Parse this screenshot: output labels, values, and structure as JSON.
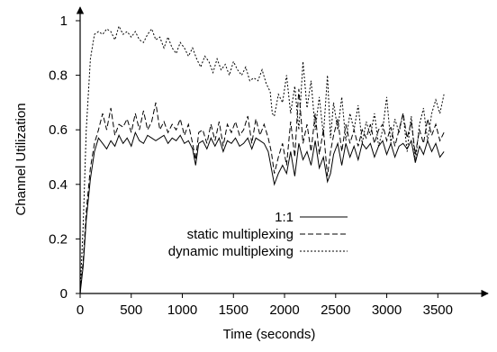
{
  "chart_data": {
    "type": "line",
    "title": "",
    "xlabel": "Time (seconds)",
    "ylabel": "Channel Utilization",
    "xlim": [
      0,
      3700
    ],
    "ylim": [
      0,
      1.05
    ],
    "xticks": [
      0,
      500,
      1000,
      1500,
      2000,
      2500,
      3000,
      3500
    ],
    "yticks": [
      0,
      0.2,
      0.4,
      0.6,
      0.8,
      1
    ],
    "x_tick_labels": [
      "0",
      "500",
      "1000",
      "1500",
      "2000",
      "2500",
      "3000",
      "3500"
    ],
    "y_tick_labels": [
      "0",
      "0.2",
      "0.4",
      "0.6",
      "0.8",
      "1"
    ],
    "grid": false,
    "legend_position": "center",
    "series": [
      {
        "name": "1:1",
        "style": "solid",
        "color": "#000000",
        "points": [
          [
            0,
            0
          ],
          [
            30,
            0.1
          ],
          [
            60,
            0.27
          ],
          [
            100,
            0.42
          ],
          [
            140,
            0.52
          ],
          [
            180,
            0.57
          ],
          [
            220,
            0.55
          ],
          [
            260,
            0.53
          ],
          [
            300,
            0.56
          ],
          [
            340,
            0.54
          ],
          [
            380,
            0.58
          ],
          [
            420,
            0.55
          ],
          [
            460,
            0.57
          ],
          [
            500,
            0.54
          ],
          [
            540,
            0.59
          ],
          [
            580,
            0.56
          ],
          [
            620,
            0.55
          ],
          [
            660,
            0.58
          ],
          [
            700,
            0.57
          ],
          [
            740,
            0.56
          ],
          [
            780,
            0.57
          ],
          [
            820,
            0.58
          ],
          [
            860,
            0.55
          ],
          [
            900,
            0.57
          ],
          [
            940,
            0.56
          ],
          [
            980,
            0.58
          ],
          [
            1020,
            0.55
          ],
          [
            1060,
            0.56
          ],
          [
            1100,
            0.53
          ],
          [
            1130,
            0.47
          ],
          [
            1160,
            0.55
          ],
          [
            1200,
            0.56
          ],
          [
            1240,
            0.53
          ],
          [
            1280,
            0.57
          ],
          [
            1320,
            0.54
          ],
          [
            1360,
            0.57
          ],
          [
            1400,
            0.52
          ],
          [
            1440,
            0.56
          ],
          [
            1480,
            0.55
          ],
          [
            1520,
            0.57
          ],
          [
            1560,
            0.54
          ],
          [
            1600,
            0.55
          ],
          [
            1640,
            0.57
          ],
          [
            1680,
            0.53
          ],
          [
            1720,
            0.57
          ],
          [
            1760,
            0.56
          ],
          [
            1800,
            0.55
          ],
          [
            1840,
            0.52
          ],
          [
            1870,
            0.46
          ],
          [
            1900,
            0.4
          ],
          [
            1940,
            0.44
          ],
          [
            1980,
            0.47
          ],
          [
            2020,
            0.44
          ],
          [
            2060,
            0.52
          ],
          [
            2100,
            0.43
          ],
          [
            2140,
            0.55
          ],
          [
            2180,
            0.49
          ],
          [
            2220,
            0.52
          ],
          [
            2260,
            0.47
          ],
          [
            2300,
            0.56
          ],
          [
            2340,
            0.46
          ],
          [
            2380,
            0.5
          ],
          [
            2420,
            0.41
          ],
          [
            2450,
            0.44
          ],
          [
            2480,
            0.51
          ],
          [
            2520,
            0.55
          ],
          [
            2560,
            0.47
          ],
          [
            2600,
            0.55
          ],
          [
            2640,
            0.5
          ],
          [
            2680,
            0.54
          ],
          [
            2720,
            0.49
          ],
          [
            2760,
            0.55
          ],
          [
            2800,
            0.53
          ],
          [
            2840,
            0.55
          ],
          [
            2880,
            0.5
          ],
          [
            2920,
            0.54
          ],
          [
            2960,
            0.56
          ],
          [
            3000,
            0.51
          ],
          [
            3040,
            0.55
          ],
          [
            3080,
            0.5
          ],
          [
            3120,
            0.54
          ],
          [
            3160,
            0.55
          ],
          [
            3200,
            0.53
          ],
          [
            3240,
            0.56
          ],
          [
            3280,
            0.48
          ],
          [
            3320,
            0.54
          ],
          [
            3360,
            0.51
          ],
          [
            3400,
            0.56
          ],
          [
            3440,
            0.52
          ],
          [
            3480,
            0.55
          ],
          [
            3520,
            0.5
          ],
          [
            3560,
            0.52
          ]
        ]
      },
      {
        "name": "static multiplexing",
        "style": "dashed",
        "color": "#000000",
        "points": [
          [
            0,
            0
          ],
          [
            30,
            0.12
          ],
          [
            60,
            0.3
          ],
          [
            100,
            0.46
          ],
          [
            140,
            0.55
          ],
          [
            180,
            0.6
          ],
          [
            220,
            0.66
          ],
          [
            260,
            0.6
          ],
          [
            300,
            0.68
          ],
          [
            340,
            0.58
          ],
          [
            380,
            0.62
          ],
          [
            420,
            0.61
          ],
          [
            460,
            0.64
          ],
          [
            500,
            0.59
          ],
          [
            540,
            0.66
          ],
          [
            580,
            0.6
          ],
          [
            620,
            0.67
          ],
          [
            660,
            0.6
          ],
          [
            700,
            0.63
          ],
          [
            740,
            0.7
          ],
          [
            780,
            0.6
          ],
          [
            820,
            0.63
          ],
          [
            860,
            0.59
          ],
          [
            900,
            0.62
          ],
          [
            940,
            0.6
          ],
          [
            980,
            0.64
          ],
          [
            1020,
            0.58
          ],
          [
            1060,
            0.62
          ],
          [
            1100,
            0.55
          ],
          [
            1130,
            0.49
          ],
          [
            1160,
            0.59
          ],
          [
            1200,
            0.6
          ],
          [
            1240,
            0.55
          ],
          [
            1280,
            0.62
          ],
          [
            1320,
            0.56
          ],
          [
            1360,
            0.63
          ],
          [
            1400,
            0.54
          ],
          [
            1440,
            0.62
          ],
          [
            1480,
            0.59
          ],
          [
            1520,
            0.63
          ],
          [
            1560,
            0.58
          ],
          [
            1600,
            0.6
          ],
          [
            1640,
            0.65
          ],
          [
            1680,
            0.55
          ],
          [
            1720,
            0.64
          ],
          [
            1760,
            0.58
          ],
          [
            1800,
            0.62
          ],
          [
            1840,
            0.57
          ],
          [
            1870,
            0.52
          ],
          [
            1900,
            0.44
          ],
          [
            1940,
            0.5
          ],
          [
            1980,
            0.55
          ],
          [
            2020,
            0.47
          ],
          [
            2060,
            0.63
          ],
          [
            2100,
            0.5
          ],
          [
            2140,
            0.75
          ],
          [
            2180,
            0.55
          ],
          [
            2220,
            0.62
          ],
          [
            2260,
            0.52
          ],
          [
            2300,
            0.66
          ],
          [
            2340,
            0.51
          ],
          [
            2380,
            0.6
          ],
          [
            2420,
            0.43
          ],
          [
            2450,
            0.52
          ],
          [
            2480,
            0.58
          ],
          [
            2520,
            0.64
          ],
          [
            2560,
            0.52
          ],
          [
            2600,
            0.62
          ],
          [
            2640,
            0.55
          ],
          [
            2680,
            0.6
          ],
          [
            2720,
            0.54
          ],
          [
            2760,
            0.6
          ],
          [
            2800,
            0.57
          ],
          [
            2840,
            0.62
          ],
          [
            2880,
            0.55
          ],
          [
            2920,
            0.6
          ],
          [
            2960,
            0.62
          ],
          [
            3000,
            0.56
          ],
          [
            3040,
            0.61
          ],
          [
            3080,
            0.54
          ],
          [
            3120,
            0.6
          ],
          [
            3160,
            0.66
          ],
          [
            3200,
            0.57
          ],
          [
            3240,
            0.63
          ],
          [
            3280,
            0.51
          ],
          [
            3320,
            0.6
          ],
          [
            3360,
            0.55
          ],
          [
            3400,
            0.64
          ],
          [
            3440,
            0.58
          ],
          [
            3480,
            0.62
          ],
          [
            3520,
            0.56
          ],
          [
            3560,
            0.59
          ]
        ]
      },
      {
        "name": "dynamic multiplexing",
        "style": "dotted",
        "color": "#000000",
        "points": [
          [
            0,
            0
          ],
          [
            30,
            0.25
          ],
          [
            60,
            0.6
          ],
          [
            100,
            0.86
          ],
          [
            140,
            0.95
          ],
          [
            180,
            0.96
          ],
          [
            220,
            0.95
          ],
          [
            260,
            0.97
          ],
          [
            300,
            0.96
          ],
          [
            340,
            0.93
          ],
          [
            380,
            0.98
          ],
          [
            420,
            0.95
          ],
          [
            460,
            0.96
          ],
          [
            500,
            0.94
          ],
          [
            540,
            0.96
          ],
          [
            580,
            0.93
          ],
          [
            620,
            0.92
          ],
          [
            660,
            0.95
          ],
          [
            700,
            0.97
          ],
          [
            740,
            0.93
          ],
          [
            780,
            0.94
          ],
          [
            820,
            0.9
          ],
          [
            860,
            0.94
          ],
          [
            900,
            0.9
          ],
          [
            940,
            0.88
          ],
          [
            980,
            0.92
          ],
          [
            1020,
            0.9
          ],
          [
            1060,
            0.87
          ],
          [
            1100,
            0.9
          ],
          [
            1140,
            0.86
          ],
          [
            1180,
            0.83
          ],
          [
            1220,
            0.87
          ],
          [
            1260,
            0.85
          ],
          [
            1300,
            0.81
          ],
          [
            1340,
            0.86
          ],
          [
            1380,
            0.82
          ],
          [
            1420,
            0.84
          ],
          [
            1460,
            0.8
          ],
          [
            1500,
            0.85
          ],
          [
            1540,
            0.82
          ],
          [
            1580,
            0.8
          ],
          [
            1620,
            0.83
          ],
          [
            1660,
            0.78
          ],
          [
            1700,
            0.79
          ],
          [
            1740,
            0.78
          ],
          [
            1780,
            0.82
          ],
          [
            1820,
            0.77
          ],
          [
            1860,
            0.74
          ],
          [
            1880,
            0.66
          ],
          [
            1900,
            0.65
          ],
          [
            1940,
            0.73
          ],
          [
            1980,
            0.7
          ],
          [
            2020,
            0.8
          ],
          [
            2060,
            0.66
          ],
          [
            2100,
            0.76
          ],
          [
            2140,
            0.6
          ],
          [
            2180,
            0.85
          ],
          [
            2220,
            0.68
          ],
          [
            2260,
            0.78
          ],
          [
            2300,
            0.6
          ],
          [
            2340,
            0.72
          ],
          [
            2380,
            0.58
          ],
          [
            2420,
            0.8
          ],
          [
            2450,
            0.57
          ],
          [
            2480,
            0.7
          ],
          [
            2520,
            0.6
          ],
          [
            2560,
            0.72
          ],
          [
            2600,
            0.56
          ],
          [
            2640,
            0.66
          ],
          [
            2680,
            0.6
          ],
          [
            2720,
            0.69
          ],
          [
            2760,
            0.55
          ],
          [
            2800,
            0.63
          ],
          [
            2840,
            0.58
          ],
          [
            2880,
            0.66
          ],
          [
            2920,
            0.54
          ],
          [
            2960,
            0.6
          ],
          [
            3000,
            0.72
          ],
          [
            3040,
            0.55
          ],
          [
            3080,
            0.64
          ],
          [
            3120,
            0.59
          ],
          [
            3160,
            0.66
          ],
          [
            3200,
            0.52
          ],
          [
            3240,
            0.65
          ],
          [
            3280,
            0.48
          ],
          [
            3320,
            0.62
          ],
          [
            3360,
            0.68
          ],
          [
            3400,
            0.56
          ],
          [
            3440,
            0.66
          ],
          [
            3480,
            0.71
          ],
          [
            3520,
            0.66
          ],
          [
            3560,
            0.73
          ]
        ]
      }
    ]
  }
}
